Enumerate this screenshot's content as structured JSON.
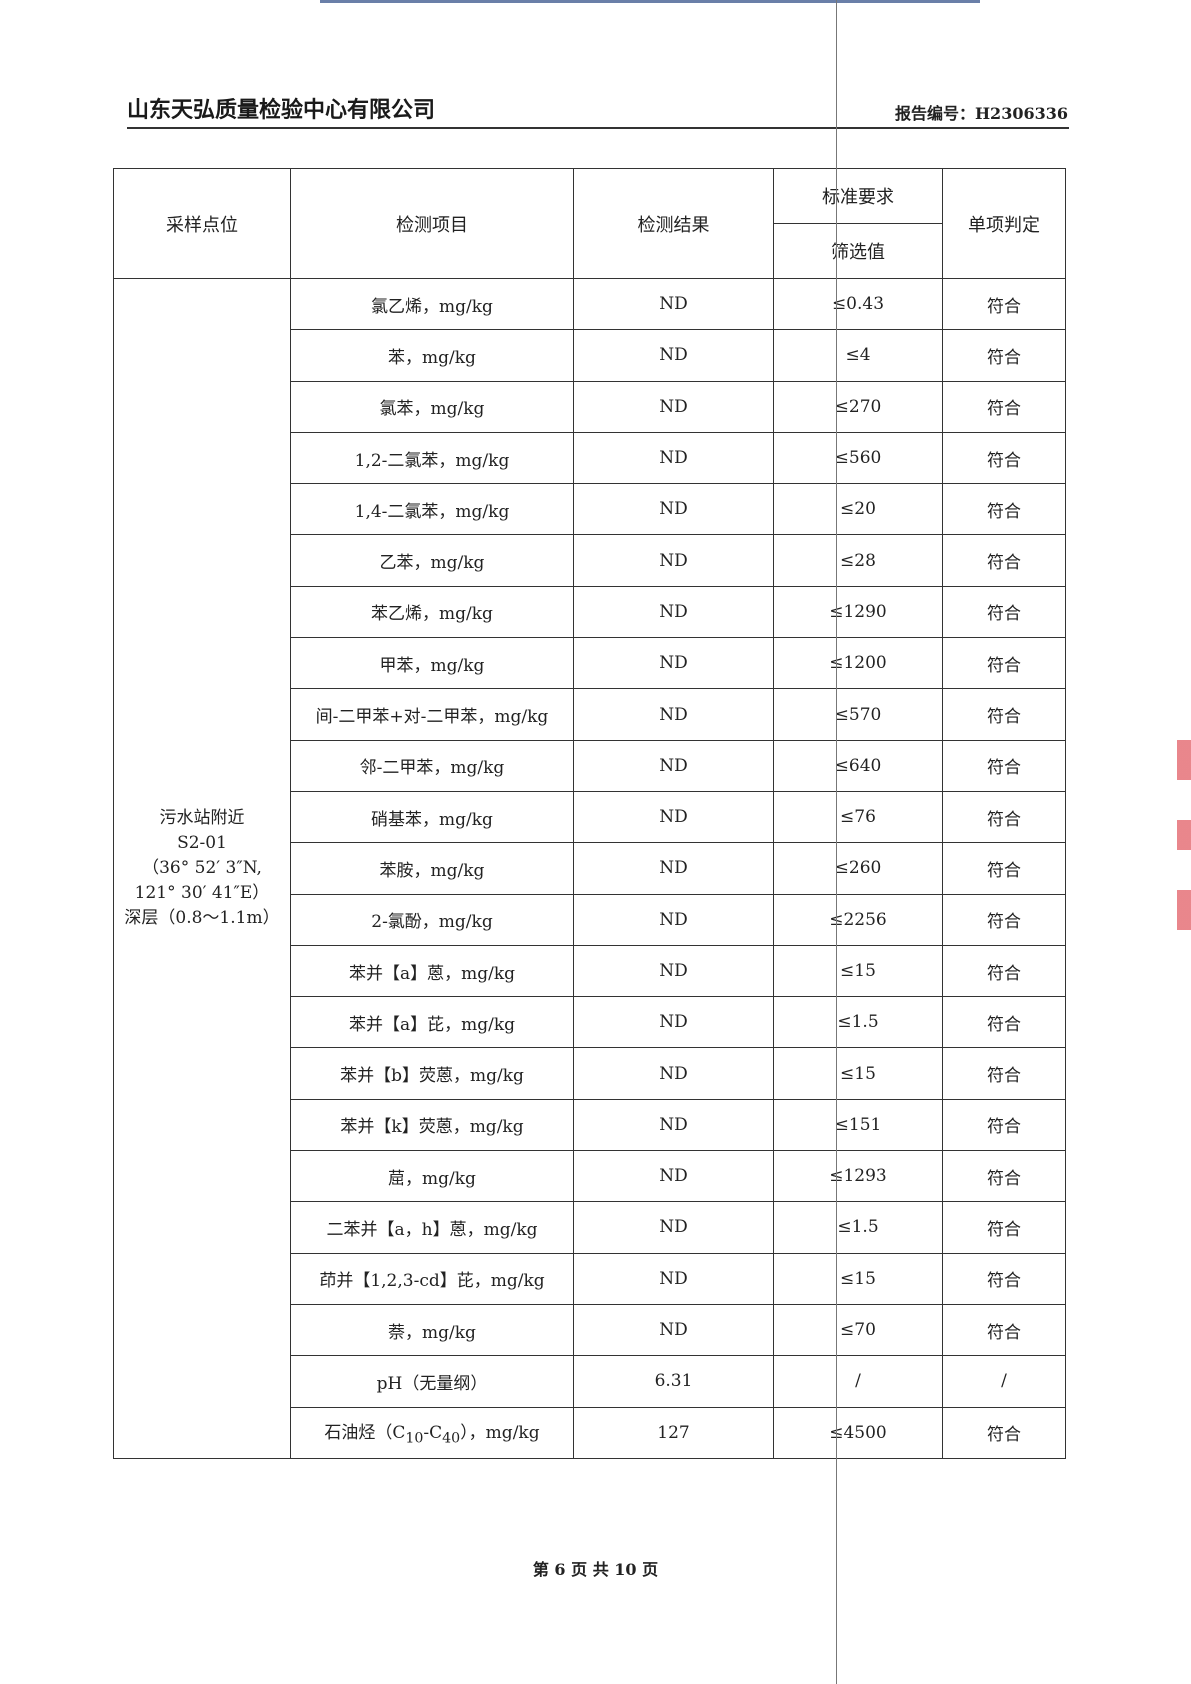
{
  "header": {
    "company": "山东天弘质量检验中心有限公司",
    "report_no": "报告编号：H2306336"
  },
  "table": {
    "columns": {
      "location": "采样点位",
      "item": "检测项目",
      "result": "检测结果",
      "standard": "标准要求",
      "screening": "筛选值",
      "judgement": "单项判定"
    },
    "location": [
      "污水站附近",
      "S2-01",
      "（36° 52′ 3″N,",
      "121° 30′ 41″E）",
      "深层（0.8～1.1m）"
    ],
    "rows": [
      {
        "item": "氯乙烯，mg/kg",
        "result": "ND",
        "screening": "≤0.43",
        "judgement": "符合"
      },
      {
        "item": "苯，mg/kg",
        "result": "ND",
        "screening": "≤4",
        "judgement": "符合"
      },
      {
        "item": "氯苯，mg/kg",
        "result": "ND",
        "screening": "≤270",
        "judgement": "符合"
      },
      {
        "item": "1,2-二氯苯，mg/kg",
        "result": "ND",
        "screening": "≤560",
        "judgement": "符合"
      },
      {
        "item": "1,4-二氯苯，mg/kg",
        "result": "ND",
        "screening": "≤20",
        "judgement": "符合"
      },
      {
        "item": "乙苯，mg/kg",
        "result": "ND",
        "screening": "≤28",
        "judgement": "符合"
      },
      {
        "item": "苯乙烯，mg/kg",
        "result": "ND",
        "screening": "≤1290",
        "judgement": "符合"
      },
      {
        "item": "甲苯，mg/kg",
        "result": "ND",
        "screening": "≤1200",
        "judgement": "符合"
      },
      {
        "item": "间-二甲苯+对-二甲苯，mg/kg",
        "result": "ND",
        "screening": "≤570",
        "judgement": "符合"
      },
      {
        "item": "邻-二甲苯，mg/kg",
        "result": "ND",
        "screening": "≤640",
        "judgement": "符合"
      },
      {
        "item": "硝基苯，mg/kg",
        "result": "ND",
        "screening": "≤76",
        "judgement": "符合"
      },
      {
        "item": "苯胺，mg/kg",
        "result": "ND",
        "screening": "≤260",
        "judgement": "符合"
      },
      {
        "item": "2-氯酚，mg/kg",
        "result": "ND",
        "screening": "≤2256",
        "judgement": "符合"
      },
      {
        "item": "苯并【a】蒽，mg/kg",
        "result": "ND",
        "screening": "≤15",
        "judgement": "符合"
      },
      {
        "item": "苯并【a】芘，mg/kg",
        "result": "ND",
        "screening": "≤1.5",
        "judgement": "符合"
      },
      {
        "item": "苯并【b】荧蒽，mg/kg",
        "result": "ND",
        "screening": "≤15",
        "judgement": "符合"
      },
      {
        "item": "苯并【k】荧蒽，mg/kg",
        "result": "ND",
        "screening": "≤151",
        "judgement": "符合"
      },
      {
        "item": "䓛，mg/kg",
        "result": "ND",
        "screening": "≤1293",
        "judgement": "符合"
      },
      {
        "item": "二苯并【a，h】蒽，mg/kg",
        "result": "ND",
        "screening": "≤1.5",
        "judgement": "符合"
      },
      {
        "item": "茚并【1,2,3-cd】芘，mg/kg",
        "result": "ND",
        "screening": "≤15",
        "judgement": "符合"
      },
      {
        "item": "萘，mg/kg",
        "result": "ND",
        "screening": "≤70",
        "judgement": "符合"
      },
      {
        "item": "pH（无量纲）",
        "result": "6.31",
        "screening": "/",
        "judgement": "/"
      },
      {
        "item": "石油烃（C10-C40），mg/kg",
        "result": "127",
        "screening": "≤4500",
        "judgement": "符合"
      }
    ]
  },
  "footer": {
    "page": "第 6 页 共 10 页"
  }
}
